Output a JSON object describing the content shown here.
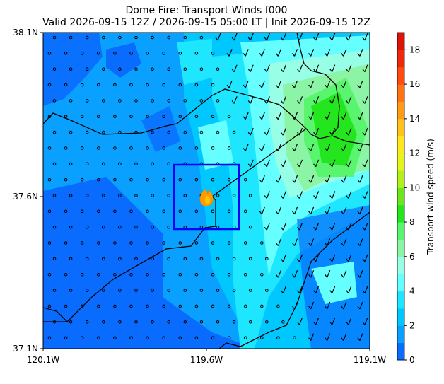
{
  "title": {
    "line1": "Dome Fire: Transport Winds f000",
    "line2": "Valid 2026-09-15 12Z / 2026-09-15 05:00 LT | Init 2026-09-15 12Z"
  },
  "axes": {
    "x_ticks": [
      "120.1W",
      "119.6W",
      "119.1W"
    ],
    "y_ticks": [
      "37.1N",
      "37.6N",
      "38.1N"
    ],
    "lon_range": [
      -120.1,
      -119.1
    ],
    "lat_range": [
      37.1,
      38.1
    ]
  },
  "colorbar": {
    "label": "Transport wind speed (m/s)",
    "ticks": [
      "0",
      "2",
      "4",
      "6",
      "8",
      "10",
      "12",
      "14",
      "16",
      "18"
    ],
    "range": [
      0,
      19
    ],
    "levels": [
      0,
      1,
      2,
      3,
      4,
      5,
      6,
      7,
      8,
      9,
      10,
      11,
      12,
      13,
      14,
      15,
      16,
      17,
      18,
      19
    ],
    "colors": [
      "#0a6bff",
      "#0aa0ff",
      "#00c8ff",
      "#1ee6ff",
      "#66ffff",
      "#96ffe6",
      "#8cf5a5",
      "#5af56e",
      "#23e61e",
      "#6ee61e",
      "#b4f01e",
      "#e6f51e",
      "#ffe61e",
      "#ffc31e",
      "#ff9b14",
      "#ff7314",
      "#ff4b0f",
      "#f0280a",
      "#dc1405"
    ]
  },
  "chart_data": {
    "type": "heatmap",
    "variable": "Transport wind speed",
    "units": "m/s",
    "x_range": [
      -120.1,
      -119.1
    ],
    "y_range": [
      37.1,
      38.1
    ],
    "description_regions": [
      {
        "region": "west and southwest",
        "speed_range": [
          0,
          2
        ]
      },
      {
        "region": "central",
        "speed_range": [
          2,
          4
        ]
      },
      {
        "region": "northeast ridge",
        "speed_range": [
          6,
          9
        ]
      }
    ],
    "fire_location": {
      "lon": -119.6,
      "lat": 37.6
    },
    "focus_box": {
      "lon_range": [
        -119.7,
        -119.5
      ],
      "lat_range": [
        37.54,
        37.74
      ]
    }
  },
  "colors": {
    "box": "#0000ff",
    "fire_outer": "#ff9a00",
    "fire_inner": "#ffc400",
    "boundary": "#000000"
  }
}
